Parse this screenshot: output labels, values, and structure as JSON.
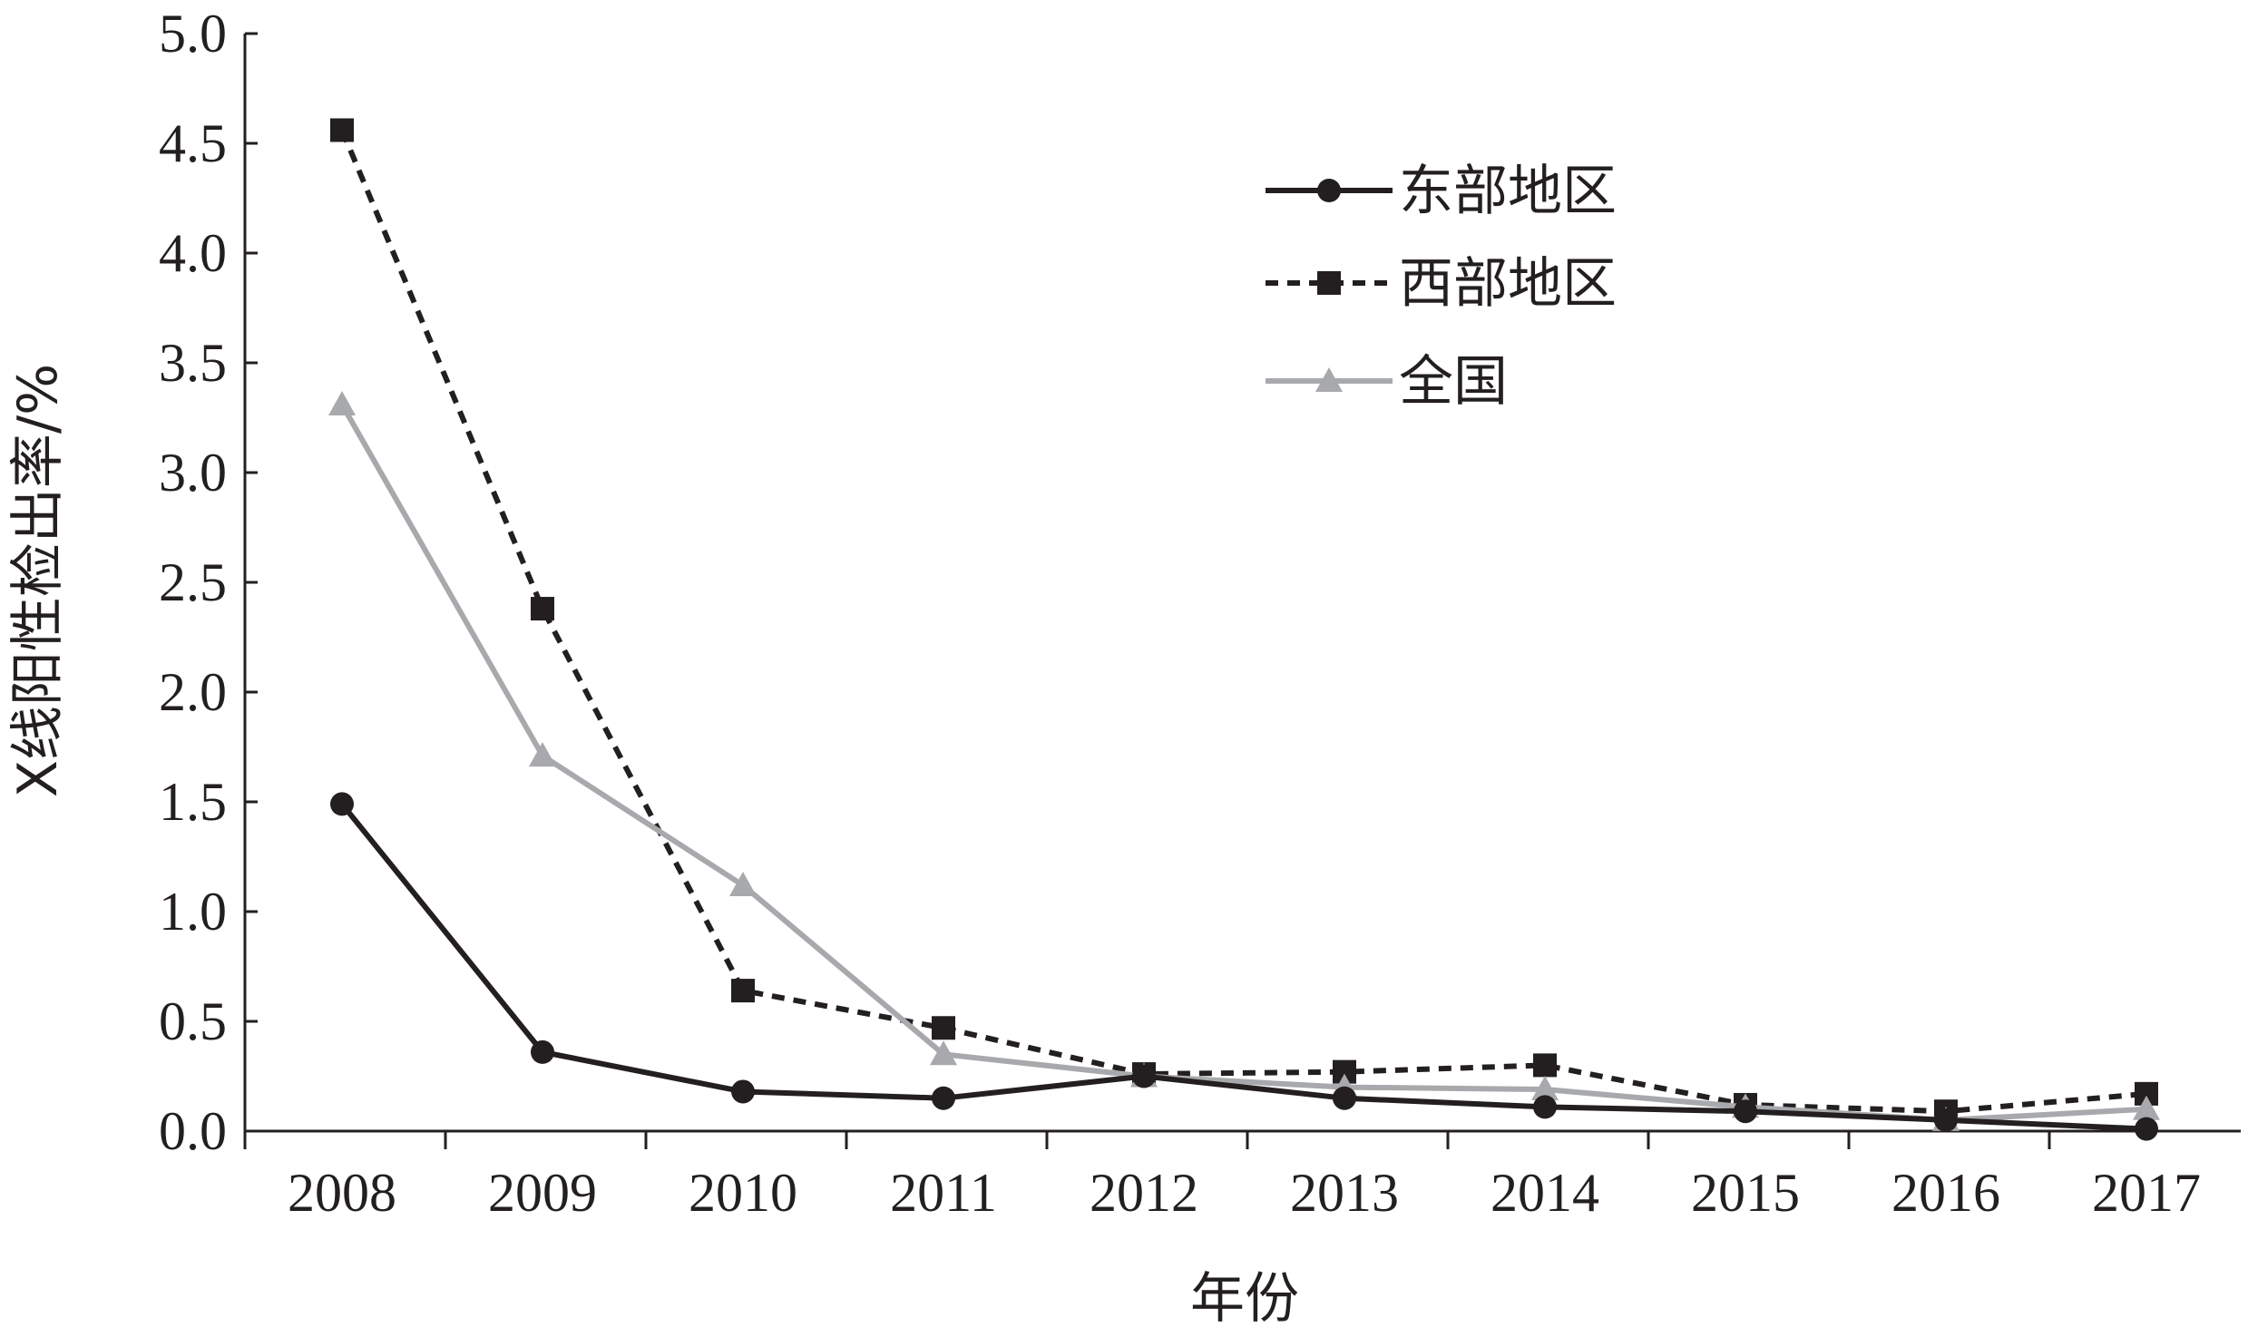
{
  "chart_data": {
    "type": "line",
    "title": "",
    "xlabel": "年份",
    "ylabel": "X线阳性检出率/%",
    "categories": [
      "2008",
      "2009",
      "2010",
      "2011",
      "2012",
      "2013",
      "2014",
      "2015",
      "2016",
      "2017"
    ],
    "ylim": [
      0,
      5.0
    ],
    "yticks": [
      "0.0",
      "0.5",
      "1.0",
      "1.5",
      "2.0",
      "2.5",
      "3.0",
      "3.5",
      "4.0",
      "4.5",
      "5.0"
    ],
    "grid": false,
    "legend_position": "top-right",
    "series": [
      {
        "name": "东部地区",
        "marker": "circle",
        "line_style": "solid",
        "color": "#231f20",
        "values": [
          1.49,
          0.36,
          0.18,
          0.15,
          0.25,
          0.15,
          0.11,
          0.09,
          0.05,
          0.01
        ]
      },
      {
        "name": "西部地区",
        "marker": "square",
        "line_style": "dotted",
        "color": "#231f20",
        "values": [
          4.56,
          2.38,
          0.64,
          0.47,
          0.26,
          0.27,
          0.3,
          0.12,
          0.09,
          0.17
        ]
      },
      {
        "name": "全国",
        "marker": "triangle",
        "line_style": "solid",
        "color": "#a7a9ac",
        "values": [
          3.31,
          1.71,
          1.12,
          0.35,
          0.25,
          0.2,
          0.19,
          0.11,
          0.05,
          0.1
        ]
      }
    ]
  }
}
